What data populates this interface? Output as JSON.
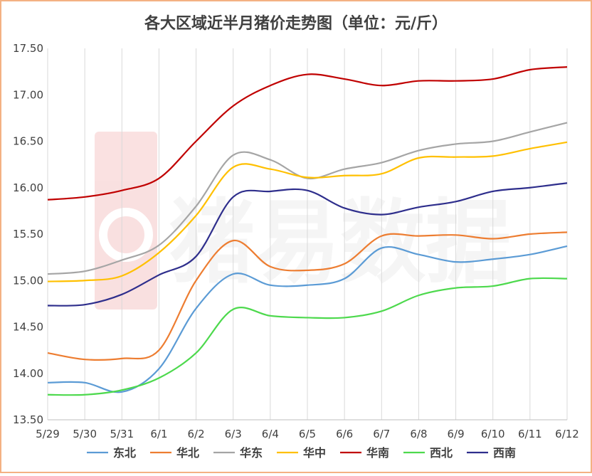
{
  "chart_data": {
    "type": "line",
    "title": "各大区域近半月猪价走势图（单位：元/斤）",
    "watermark": "猪易数据",
    "categories": [
      "5/29",
      "5/30",
      "5/31",
      "6/1",
      "6/2",
      "6/3",
      "6/4",
      "6/5",
      "6/6",
      "6/7",
      "6/8",
      "6/9",
      "6/10",
      "6/11",
      "6/12"
    ],
    "ylim": [
      13.5,
      17.5
    ],
    "yticks": [
      "13.50",
      "14.00",
      "14.50",
      "15.00",
      "15.50",
      "16.00",
      "16.50",
      "17.00",
      "17.50"
    ],
    "ytick_values": [
      13.5,
      14.0,
      14.5,
      15.0,
      15.5,
      16.0,
      16.5,
      17.0,
      17.5
    ],
    "grid": "vertical",
    "legend_position": "bottom",
    "border_color": "#f4b183",
    "series": [
      {
        "name": "东北",
        "color": "#5b9bd5",
        "values": [
          13.9,
          13.9,
          13.8,
          14.05,
          14.7,
          15.07,
          14.95,
          14.95,
          15.02,
          15.35,
          15.28,
          15.2,
          15.23,
          15.28,
          15.37
        ]
      },
      {
        "name": "华北",
        "color": "#ed7d31",
        "values": [
          14.22,
          14.15,
          14.16,
          14.25,
          15.0,
          15.43,
          15.15,
          15.11,
          15.18,
          15.48,
          15.48,
          15.49,
          15.45,
          15.5,
          15.52
        ]
      },
      {
        "name": "华东",
        "color": "#a5a5a5",
        "values": [
          15.07,
          15.1,
          15.22,
          15.38,
          15.8,
          16.35,
          16.3,
          16.1,
          16.2,
          16.27,
          16.4,
          16.47,
          16.5,
          16.6,
          16.7
        ]
      },
      {
        "name": "华中",
        "color": "#ffc000",
        "values": [
          14.99,
          15.0,
          15.05,
          15.3,
          15.7,
          16.22,
          16.2,
          16.11,
          16.13,
          16.15,
          16.32,
          16.33,
          16.34,
          16.42,
          16.49
        ]
      },
      {
        "name": "华南",
        "color": "#c00000",
        "values": [
          15.87,
          15.9,
          15.97,
          16.1,
          16.5,
          16.88,
          17.1,
          17.22,
          17.17,
          17.1,
          17.15,
          17.15,
          17.17,
          17.27,
          17.3
        ]
      },
      {
        "name": "西北",
        "color": "#4dd94d",
        "values": [
          13.77,
          13.77,
          13.82,
          13.95,
          14.22,
          14.69,
          14.62,
          14.6,
          14.6,
          14.67,
          14.84,
          14.92,
          14.94,
          15.02,
          15.02
        ]
      },
      {
        "name": "西南",
        "color": "#2e2e8c",
        "values": [
          14.73,
          14.74,
          14.85,
          15.06,
          15.26,
          15.9,
          15.96,
          15.97,
          15.78,
          15.71,
          15.79,
          15.85,
          15.96,
          16.0,
          16.05
        ]
      }
    ]
  }
}
